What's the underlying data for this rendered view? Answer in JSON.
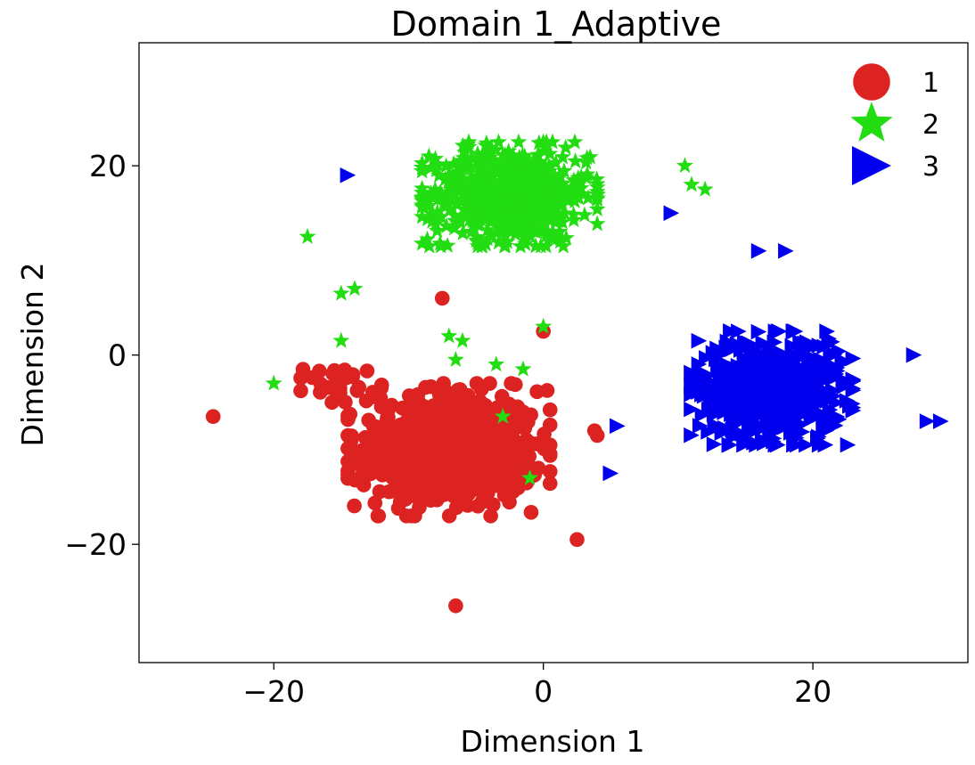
{
  "chart_data": {
    "type": "scatter",
    "title": "Domain 1_Adaptive",
    "xlabel": "Dimension 1",
    "ylabel": "Dimension 2",
    "xlim": [
      -30,
      31.5
    ],
    "ylim": [
      -32.5,
      33
    ],
    "xticks": [
      -20,
      0,
      20
    ],
    "yticks": [
      -20,
      0,
      20
    ],
    "xtick_labels": [
      "−20",
      "0",
      "20"
    ],
    "ytick_labels": [
      "−20",
      "0",
      "20"
    ],
    "grid": false,
    "legend_position": "top-right",
    "series": [
      {
        "name": "1",
        "marker": "circle",
        "color": "#dd2222",
        "clusters": [
          {
            "center": [
              -7,
              -10
            ],
            "spread": [
              7.5,
              7
            ],
            "count": 620
          },
          {
            "center": [
              -15,
              -3
            ],
            "spread": [
              3,
              2
            ],
            "count": 30
          }
        ],
        "points": [
          [
            -24.5,
            -6.5
          ],
          [
            -7.5,
            6
          ],
          [
            0,
            2.5
          ],
          [
            2.5,
            -19.5
          ],
          [
            3.8,
            -8
          ],
          [
            4,
            -8.5
          ],
          [
            -6.5,
            -26.5
          ]
        ]
      },
      {
        "name": "2",
        "marker": "star",
        "color": "#22dd11",
        "clusters": [
          {
            "center": [
              -2.5,
              17
            ],
            "spread": [
              6.5,
              5.5
            ],
            "count": 720
          }
        ],
        "points": [
          [
            -15,
            1.5
          ],
          [
            -20,
            -3
          ],
          [
            -7,
            2
          ],
          [
            -6,
            1.5
          ],
          [
            -6.5,
            -0.5
          ],
          [
            -3.5,
            -1
          ],
          [
            -1.5,
            -1.5
          ],
          [
            -3,
            -6.5
          ],
          [
            -1,
            -13
          ],
          [
            0,
            3
          ],
          [
            12,
            17.5
          ],
          [
            -15,
            6.5
          ],
          [
            -14,
            7
          ],
          [
            -17.5,
            12.5
          ],
          [
            10.5,
            20
          ],
          [
            11,
            18
          ]
        ]
      },
      {
        "name": "3",
        "marker": "triangle-right",
        "color": "#0000ee",
        "clusters": [
          {
            "center": [
              17,
              -3.5
            ],
            "spread": [
              6,
              6
            ],
            "count": 640
          }
        ],
        "points": [
          [
            -14.5,
            19
          ],
          [
            9.5,
            15
          ],
          [
            28.5,
            -7
          ],
          [
            29.5,
            -7
          ],
          [
            27.5,
            0
          ],
          [
            5.5,
            -7.5
          ],
          [
            5,
            -12.5
          ],
          [
            16,
            11
          ],
          [
            18,
            11
          ]
        ]
      }
    ]
  }
}
